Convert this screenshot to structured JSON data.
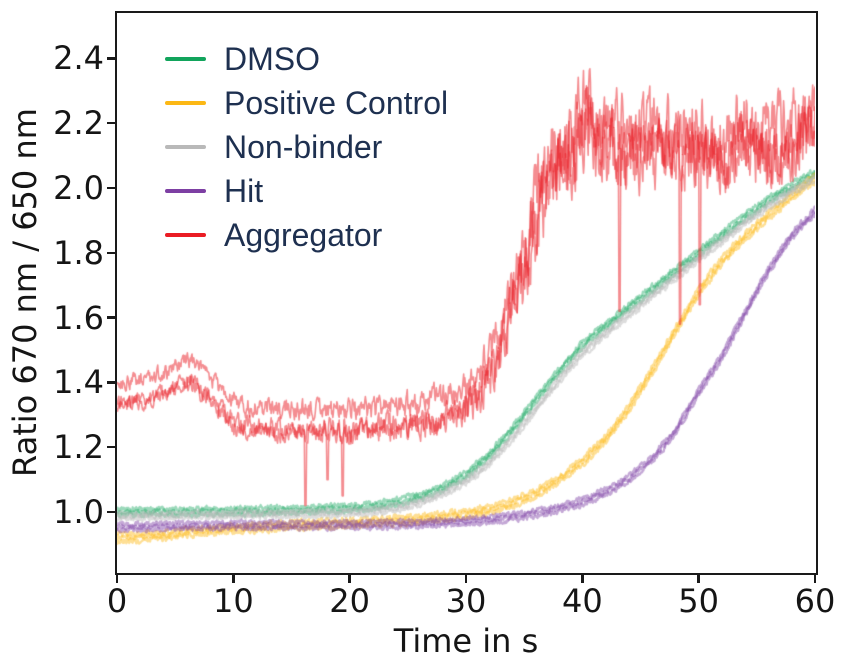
{
  "window": {
    "background": "#ffffff"
  },
  "axes": {
    "spine_color": "#1a1a1a",
    "tick_color": "#1a1a1a",
    "tick_label_color": "#151515",
    "axis_label_color": "#151515"
  },
  "legend": {
    "text_color": "#1e3050",
    "position": "upper left"
  },
  "chart_data": {
    "type": "line",
    "title": "",
    "xlabel": "Time in s",
    "ylabel": "Ratio 670 nm / 650 nm",
    "xlim": [
      0,
      60
    ],
    "ylim": [
      0.815,
      2.54
    ],
    "grid": false,
    "legend_position": "upper left",
    "x_ticks": [
      {
        "value": 0,
        "label": "0"
      },
      {
        "value": 10,
        "label": "10"
      },
      {
        "value": 20,
        "label": "20"
      },
      {
        "value": 30,
        "label": "30"
      },
      {
        "value": 40,
        "label": "40"
      },
      {
        "value": 50,
        "label": "50"
      },
      {
        "value": 60,
        "label": "60"
      }
    ],
    "y_ticks": [
      {
        "value": 1.0,
        "label": "1.0"
      },
      {
        "value": 1.2,
        "label": "1.2"
      },
      {
        "value": 1.4,
        "label": "1.4"
      },
      {
        "value": 1.6,
        "label": "1.6"
      },
      {
        "value": 1.8,
        "label": "1.8"
      },
      {
        "value": 2.0,
        "label": "2.0"
      },
      {
        "value": 2.2,
        "label": "2.2"
      },
      {
        "value": 2.4,
        "label": "2.4"
      }
    ],
    "series": [
      {
        "name": "dmso",
        "legend_label": "DMSO",
        "color": "#12a45c",
        "alpha": 0.42,
        "line_width": 2.2,
        "offsets": [
          0.009,
          0,
          -0.009
        ],
        "noise_persist": 0.35,
        "noise_schedule": [
          [
            0,
            0.007
          ],
          [
            60,
            0.007
          ]
        ],
        "anchors": [
          [
            0,
            1.0
          ],
          [
            4,
            1.0
          ],
          [
            8,
            1.002
          ],
          [
            12,
            1.004
          ],
          [
            16,
            1.007
          ],
          [
            20,
            1.012
          ],
          [
            22,
            1.018
          ],
          [
            24,
            1.03
          ],
          [
            26,
            1.048
          ],
          [
            28,
            1.075
          ],
          [
            30,
            1.115
          ],
          [
            32,
            1.175
          ],
          [
            34,
            1.255
          ],
          [
            36,
            1.345
          ],
          [
            38,
            1.435
          ],
          [
            40,
            1.515
          ],
          [
            42,
            1.576
          ],
          [
            44,
            1.632
          ],
          [
            46,
            1.688
          ],
          [
            48,
            1.744
          ],
          [
            50,
            1.8
          ],
          [
            52,
            1.856
          ],
          [
            54,
            1.912
          ],
          [
            56,
            1.962
          ],
          [
            58,
            2.006
          ],
          [
            60,
            2.045
          ]
        ]
      },
      {
        "name": "positive-control",
        "legend_label": "Positive Control",
        "color": "#fcb815",
        "alpha": 0.45,
        "line_width": 2.2,
        "offsets": [
          0.01,
          0,
          -0.01
        ],
        "noise_persist": 0.35,
        "noise_schedule": [
          [
            0,
            0.008
          ],
          [
            60,
            0.008
          ]
        ],
        "anchors": [
          [
            0,
            0.92
          ],
          [
            2,
            0.922
          ],
          [
            4,
            0.928
          ],
          [
            6,
            0.936
          ],
          [
            8,
            0.943
          ],
          [
            10,
            0.948
          ],
          [
            12,
            0.953
          ],
          [
            14,
            0.957
          ],
          [
            16,
            0.96
          ],
          [
            18,
            0.963
          ],
          [
            20,
            0.967
          ],
          [
            22,
            0.97
          ],
          [
            24,
            0.974
          ],
          [
            26,
            0.979
          ],
          [
            28,
            0.985
          ],
          [
            30,
            0.994
          ],
          [
            32,
            1.008
          ],
          [
            34,
            1.028
          ],
          [
            36,
            1.058
          ],
          [
            38,
            1.1
          ],
          [
            40,
            1.155
          ],
          [
            42,
            1.225
          ],
          [
            44,
            1.32
          ],
          [
            46,
            1.435
          ],
          [
            48,
            1.56
          ],
          [
            50,
            1.68
          ],
          [
            52,
            1.775
          ],
          [
            54,
            1.85
          ],
          [
            56,
            1.915
          ],
          [
            58,
            1.975
          ],
          [
            60,
            2.03
          ]
        ]
      },
      {
        "name": "non-binder",
        "legend_label": "Non-binder",
        "color": "#b9b9b9",
        "alpha": 0.5,
        "line_width": 2.0,
        "offsets": [
          0.008,
          0,
          -0.008
        ],
        "noise_persist": 0.35,
        "noise_schedule": [
          [
            0,
            0.007
          ],
          [
            60,
            0.007
          ]
        ],
        "anchors": [
          [
            0,
            0.987
          ],
          [
            4,
            0.989
          ],
          [
            8,
            0.991
          ],
          [
            12,
            0.993
          ],
          [
            16,
            0.995
          ],
          [
            20,
            0.998
          ],
          [
            22,
            1.003
          ],
          [
            24,
            1.012
          ],
          [
            26,
            1.03
          ],
          [
            28,
            1.058
          ],
          [
            30,
            1.095
          ],
          [
            32,
            1.152
          ],
          [
            34,
            1.228
          ],
          [
            36,
            1.318
          ],
          [
            38,
            1.408
          ],
          [
            40,
            1.49
          ],
          [
            42,
            1.552
          ],
          [
            44,
            1.61
          ],
          [
            46,
            1.668
          ],
          [
            48,
            1.725
          ],
          [
            50,
            1.782
          ],
          [
            52,
            1.838
          ],
          [
            54,
            1.893
          ],
          [
            56,
            1.943
          ],
          [
            58,
            1.99
          ],
          [
            60,
            2.028
          ]
        ]
      },
      {
        "name": "hit",
        "legend_label": "Hit",
        "color": "#7d3fa3",
        "alpha": 0.45,
        "line_width": 2.2,
        "offsets": [
          0.009,
          0,
          -0.009
        ],
        "noise_persist": 0.35,
        "noise_schedule": [
          [
            0,
            0.007
          ],
          [
            60,
            0.007
          ]
        ],
        "anchors": [
          [
            0,
            0.952
          ],
          [
            4,
            0.956
          ],
          [
            8,
            0.958
          ],
          [
            12,
            0.959
          ],
          [
            16,
            0.96
          ],
          [
            20,
            0.96
          ],
          [
            24,
            0.962
          ],
          [
            28,
            0.967
          ],
          [
            30,
            0.971
          ],
          [
            32,
            0.977
          ],
          [
            34,
            0.985
          ],
          [
            36,
            0.996
          ],
          [
            38,
            1.01
          ],
          [
            40,
            1.032
          ],
          [
            42,
            1.062
          ],
          [
            44,
            1.103
          ],
          [
            46,
            1.163
          ],
          [
            48,
            1.248
          ],
          [
            50,
            1.37
          ],
          [
            52,
            1.48
          ],
          [
            54,
            1.615
          ],
          [
            56,
            1.745
          ],
          [
            58,
            1.853
          ],
          [
            60,
            1.928
          ]
        ]
      },
      {
        "name": "aggregator",
        "legend_label": "Aggregator",
        "color": "#ea1c24",
        "alpha": 0.5,
        "line_width": 1.6,
        "offsets": [
          0.033,
          -0.036,
          -0.028
        ],
        "noise_persist": 0.55,
        "noise_schedule": [
          [
            0,
            0.018
          ],
          [
            8,
            0.022
          ],
          [
            29,
            0.032
          ],
          [
            33,
            0.055
          ],
          [
            36,
            0.095
          ],
          [
            42,
            0.095
          ],
          [
            44,
            0.08
          ],
          [
            60,
            0.08
          ]
        ],
        "anchors": [
          [
            0,
            1.365
          ],
          [
            2,
            1.372
          ],
          [
            4,
            1.395
          ],
          [
            5.5,
            1.425
          ],
          [
            6.5,
            1.43
          ],
          [
            7.5,
            1.4
          ],
          [
            9,
            1.34
          ],
          [
            10,
            1.305
          ],
          [
            12,
            1.285
          ],
          [
            14,
            1.29
          ],
          [
            16,
            1.28
          ],
          [
            18,
            1.285
          ],
          [
            20,
            1.278
          ],
          [
            22,
            1.285
          ],
          [
            24,
            1.295
          ],
          [
            26,
            1.298
          ],
          [
            28,
            1.32
          ],
          [
            30,
            1.355
          ],
          [
            31,
            1.39
          ],
          [
            32,
            1.44
          ],
          [
            33,
            1.54
          ],
          [
            34,
            1.65
          ],
          [
            35,
            1.78
          ],
          [
            36,
            1.915
          ],
          [
            37,
            2.02
          ],
          [
            38,
            2.08
          ],
          [
            39,
            2.13
          ],
          [
            40,
            2.24
          ],
          [
            41,
            2.2
          ],
          [
            42,
            2.16
          ],
          [
            44,
            2.13
          ],
          [
            46,
            2.16
          ],
          [
            48,
            2.13
          ],
          [
            50,
            2.16
          ],
          [
            52,
            2.12
          ],
          [
            54,
            2.16
          ],
          [
            56,
            2.13
          ],
          [
            58,
            2.16
          ],
          [
            60,
            2.18
          ]
        ],
        "spike_rep": 1,
        "spikes": [
          [
            16.2,
            1.02
          ],
          [
            18.1,
            1.1
          ],
          [
            19.4,
            1.05
          ],
          [
            43.2,
            1.62
          ],
          [
            48.4,
            1.58
          ],
          [
            50.1,
            1.64
          ]
        ]
      }
    ]
  }
}
